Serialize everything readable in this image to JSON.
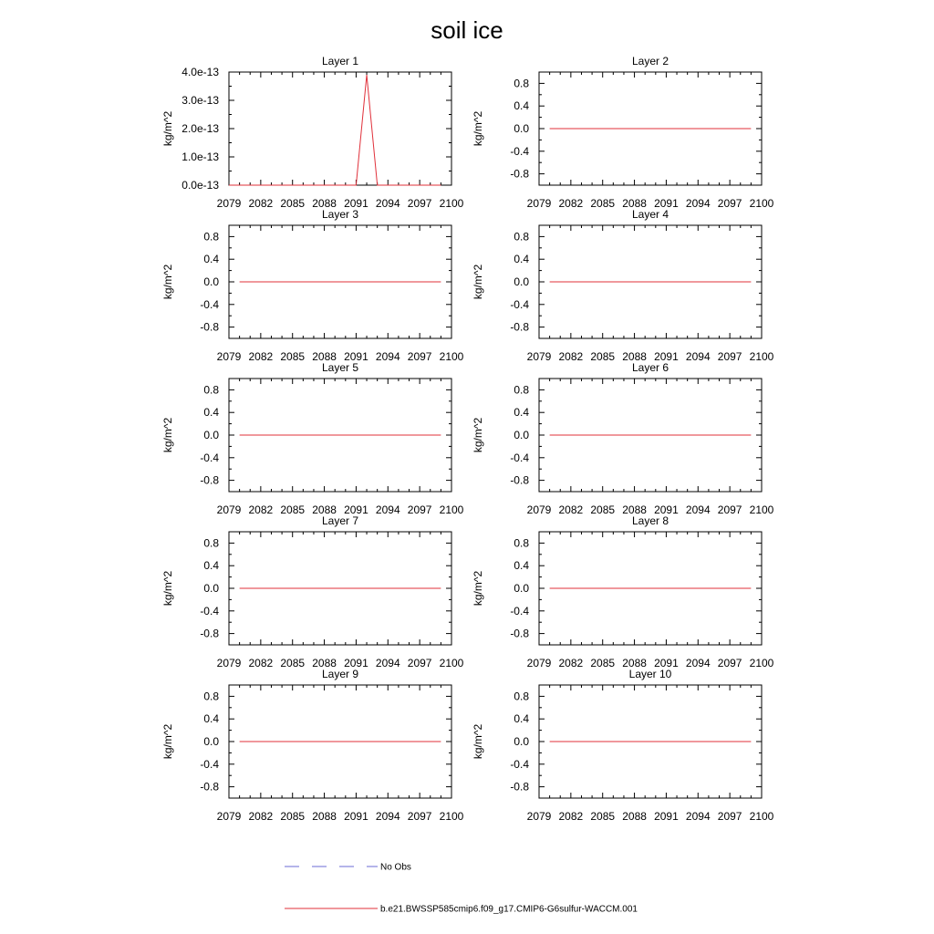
{
  "title": "soil ice",
  "legend": {
    "obs_label": "No Obs",
    "model_label": "b.e21.BWSSP585cmip6.f09_g17.CMIP6-G6sulfur-WACCM.001",
    "obs_color": "#6b6bd6",
    "model_color": "#e0303a"
  },
  "chart_data": [
    {
      "type": "line",
      "title": "Layer 1",
      "ylabel": "kg/m^2",
      "xlim": [
        2079,
        2100
      ],
      "x_ticks": [
        "2079",
        "2082",
        "2085",
        "2088",
        "2091",
        "2094",
        "2097",
        "2100"
      ],
      "ylim": [
        0,
        4e-13
      ],
      "y_ticks": [
        0,
        1e-13,
        2e-13,
        3e-13,
        4e-13
      ],
      "y_tick_labels": [
        "0.0e-13",
        "1.0e-13",
        "2.0e-13",
        "3.0e-13",
        "4.0e-13"
      ],
      "series": [
        {
          "color": "#e0303a",
          "x": [
            2079,
            2080,
            2081,
            2082,
            2083,
            2084,
            2085,
            2086,
            2087,
            2088,
            2089,
            2090,
            2091,
            2092,
            2093,
            2094,
            2095,
            2096,
            2097,
            2098,
            2099
          ],
          "y": [
            0,
            0,
            0,
            0,
            0,
            0,
            0,
            0,
            0,
            0,
            0,
            0,
            0,
            3.9e-13,
            0,
            0,
            0,
            0,
            0,
            0,
            0
          ]
        }
      ]
    },
    {
      "type": "line",
      "title": "Layer 2",
      "ylabel": "kg/m^2",
      "xlim": [
        2079,
        2100
      ],
      "x_ticks": [
        "2079",
        "2082",
        "2085",
        "2088",
        "2091",
        "2094",
        "2097",
        "2100"
      ],
      "ylim": [
        -1,
        1
      ],
      "y_ticks": [
        -0.8,
        -0.4,
        0,
        0.4,
        0.8
      ],
      "y_tick_labels": [
        "-0.8",
        "-0.4",
        "0.0",
        "0.4",
        "0.8"
      ],
      "series": [
        {
          "color": "#e0303a",
          "x": [
            2080,
            2099
          ],
          "y": [
            0,
            0
          ]
        }
      ]
    },
    {
      "type": "line",
      "title": "Layer 3",
      "ylabel": "kg/m^2",
      "xlim": [
        2079,
        2100
      ],
      "x_ticks": [
        "2079",
        "2082",
        "2085",
        "2088",
        "2091",
        "2094",
        "2097",
        "2100"
      ],
      "ylim": [
        -1,
        1
      ],
      "y_ticks": [
        -0.8,
        -0.4,
        0,
        0.4,
        0.8
      ],
      "y_tick_labels": [
        "-0.8",
        "-0.4",
        "0.0",
        "0.4",
        "0.8"
      ],
      "series": [
        {
          "color": "#e0303a",
          "x": [
            2080,
            2099
          ],
          "y": [
            0,
            0
          ]
        }
      ]
    },
    {
      "type": "line",
      "title": "Layer 4",
      "ylabel": "kg/m^2",
      "xlim": [
        2079,
        2100
      ],
      "x_ticks": [
        "2079",
        "2082",
        "2085",
        "2088",
        "2091",
        "2094",
        "2097",
        "2100"
      ],
      "ylim": [
        -1,
        1
      ],
      "y_ticks": [
        -0.8,
        -0.4,
        0,
        0.4,
        0.8
      ],
      "y_tick_labels": [
        "-0.8",
        "-0.4",
        "0.0",
        "0.4",
        "0.8"
      ],
      "series": [
        {
          "color": "#e0303a",
          "x": [
            2080,
            2099
          ],
          "y": [
            0,
            0
          ]
        }
      ]
    },
    {
      "type": "line",
      "title": "Layer 5",
      "ylabel": "kg/m^2",
      "xlim": [
        2079,
        2100
      ],
      "x_ticks": [
        "2079",
        "2082",
        "2085",
        "2088",
        "2091",
        "2094",
        "2097",
        "2100"
      ],
      "ylim": [
        -1,
        1
      ],
      "y_ticks": [
        -0.8,
        -0.4,
        0,
        0.4,
        0.8
      ],
      "y_tick_labels": [
        "-0.8",
        "-0.4",
        "0.0",
        "0.4",
        "0.8"
      ],
      "series": [
        {
          "color": "#e0303a",
          "x": [
            2080,
            2099
          ],
          "y": [
            0,
            0
          ]
        }
      ]
    },
    {
      "type": "line",
      "title": "Layer 6",
      "ylabel": "kg/m^2",
      "xlim": [
        2079,
        2100
      ],
      "x_ticks": [
        "2079",
        "2082",
        "2085",
        "2088",
        "2091",
        "2094",
        "2097",
        "2100"
      ],
      "ylim": [
        -1,
        1
      ],
      "y_ticks": [
        -0.8,
        -0.4,
        0,
        0.4,
        0.8
      ],
      "y_tick_labels": [
        "-0.8",
        "-0.4",
        "0.0",
        "0.4",
        "0.8"
      ],
      "series": [
        {
          "color": "#e0303a",
          "x": [
            2080,
            2099
          ],
          "y": [
            0,
            0
          ]
        }
      ]
    },
    {
      "type": "line",
      "title": "Layer 7",
      "ylabel": "kg/m^2",
      "xlim": [
        2079,
        2100
      ],
      "x_ticks": [
        "2079",
        "2082",
        "2085",
        "2088",
        "2091",
        "2094",
        "2097",
        "2100"
      ],
      "ylim": [
        -1,
        1
      ],
      "y_ticks": [
        -0.8,
        -0.4,
        0,
        0.4,
        0.8
      ],
      "y_tick_labels": [
        "-0.8",
        "-0.4",
        "0.0",
        "0.4",
        "0.8"
      ],
      "series": [
        {
          "color": "#e0303a",
          "x": [
            2080,
            2099
          ],
          "y": [
            0,
            0
          ]
        }
      ]
    },
    {
      "type": "line",
      "title": "Layer 8",
      "ylabel": "kg/m^2",
      "xlim": [
        2079,
        2100
      ],
      "x_ticks": [
        "2079",
        "2082",
        "2085",
        "2088",
        "2091",
        "2094",
        "2097",
        "2100"
      ],
      "ylim": [
        -1,
        1
      ],
      "y_ticks": [
        -0.8,
        -0.4,
        0,
        0.4,
        0.8
      ],
      "y_tick_labels": [
        "-0.8",
        "-0.4",
        "0.0",
        "0.4",
        "0.8"
      ],
      "series": [
        {
          "color": "#e0303a",
          "x": [
            2080,
            2099
          ],
          "y": [
            0,
            0
          ]
        }
      ]
    },
    {
      "type": "line",
      "title": "Layer 9",
      "ylabel": "kg/m^2",
      "xlim": [
        2079,
        2100
      ],
      "x_ticks": [
        "2079",
        "2082",
        "2085",
        "2088",
        "2091",
        "2094",
        "2097",
        "2100"
      ],
      "ylim": [
        -1,
        1
      ],
      "y_ticks": [
        -0.8,
        -0.4,
        0,
        0.4,
        0.8
      ],
      "y_tick_labels": [
        "-0.8",
        "-0.4",
        "0.0",
        "0.4",
        "0.8"
      ],
      "series": [
        {
          "color": "#e0303a",
          "x": [
            2080,
            2099
          ],
          "y": [
            0,
            0
          ]
        }
      ]
    },
    {
      "type": "line",
      "title": "Layer 10",
      "ylabel": "kg/m^2",
      "xlim": [
        2079,
        2100
      ],
      "x_ticks": [
        "2079",
        "2082",
        "2085",
        "2088",
        "2091",
        "2094",
        "2097",
        "2100"
      ],
      "ylim": [
        -1,
        1
      ],
      "y_ticks": [
        -0.8,
        -0.4,
        0,
        0.4,
        0.8
      ],
      "y_tick_labels": [
        "-0.8",
        "-0.4",
        "0.0",
        "0.4",
        "0.8"
      ],
      "series": [
        {
          "color": "#e0303a",
          "x": [
            2080,
            2099
          ],
          "y": [
            0,
            0
          ]
        }
      ]
    }
  ]
}
